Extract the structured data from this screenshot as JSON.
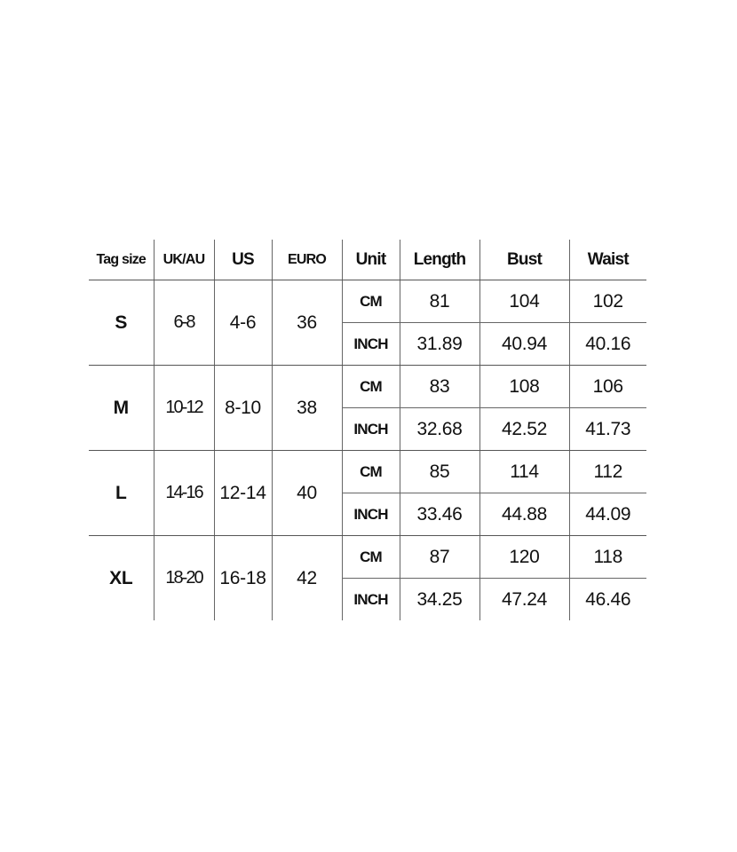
{
  "headers": [
    "Tag size",
    "UK/AU",
    "US",
    "EURO",
    "Unit",
    "Length",
    "Bust",
    "Waist"
  ],
  "rows": [
    {
      "tag": "S",
      "uk": "6-8",
      "us": "4-6",
      "euro": "36",
      "cm": {
        "unit": "CM",
        "length": "81",
        "bust": "104",
        "waist": "102"
      },
      "inch": {
        "unit": "INCH",
        "length": "31.89",
        "bust": "40.94",
        "waist": "40.16"
      }
    },
    {
      "tag": "M",
      "uk": "10-12",
      "us": "8-10",
      "euro": "38",
      "cm": {
        "unit": "CM",
        "length": "83",
        "bust": "108",
        "waist": "106"
      },
      "inch": {
        "unit": "INCH",
        "length": "32.68",
        "bust": "42.52",
        "waist": "41.73"
      }
    },
    {
      "tag": "L",
      "uk": "14-16",
      "us": "12-14",
      "euro": "40",
      "cm": {
        "unit": "CM",
        "length": "85",
        "bust": "114",
        "waist": "112"
      },
      "inch": {
        "unit": "INCH",
        "length": "33.46",
        "bust": "44.88",
        "waist": "44.09"
      }
    },
    {
      "tag": "XL",
      "uk": "18-20",
      "us": "16-18",
      "euro": "42",
      "cm": {
        "unit": "CM",
        "length": "87",
        "bust": "120",
        "waist": "118"
      },
      "inch": {
        "unit": "INCH",
        "length": "34.25",
        "bust": "47.24",
        "waist": "46.46"
      }
    }
  ]
}
